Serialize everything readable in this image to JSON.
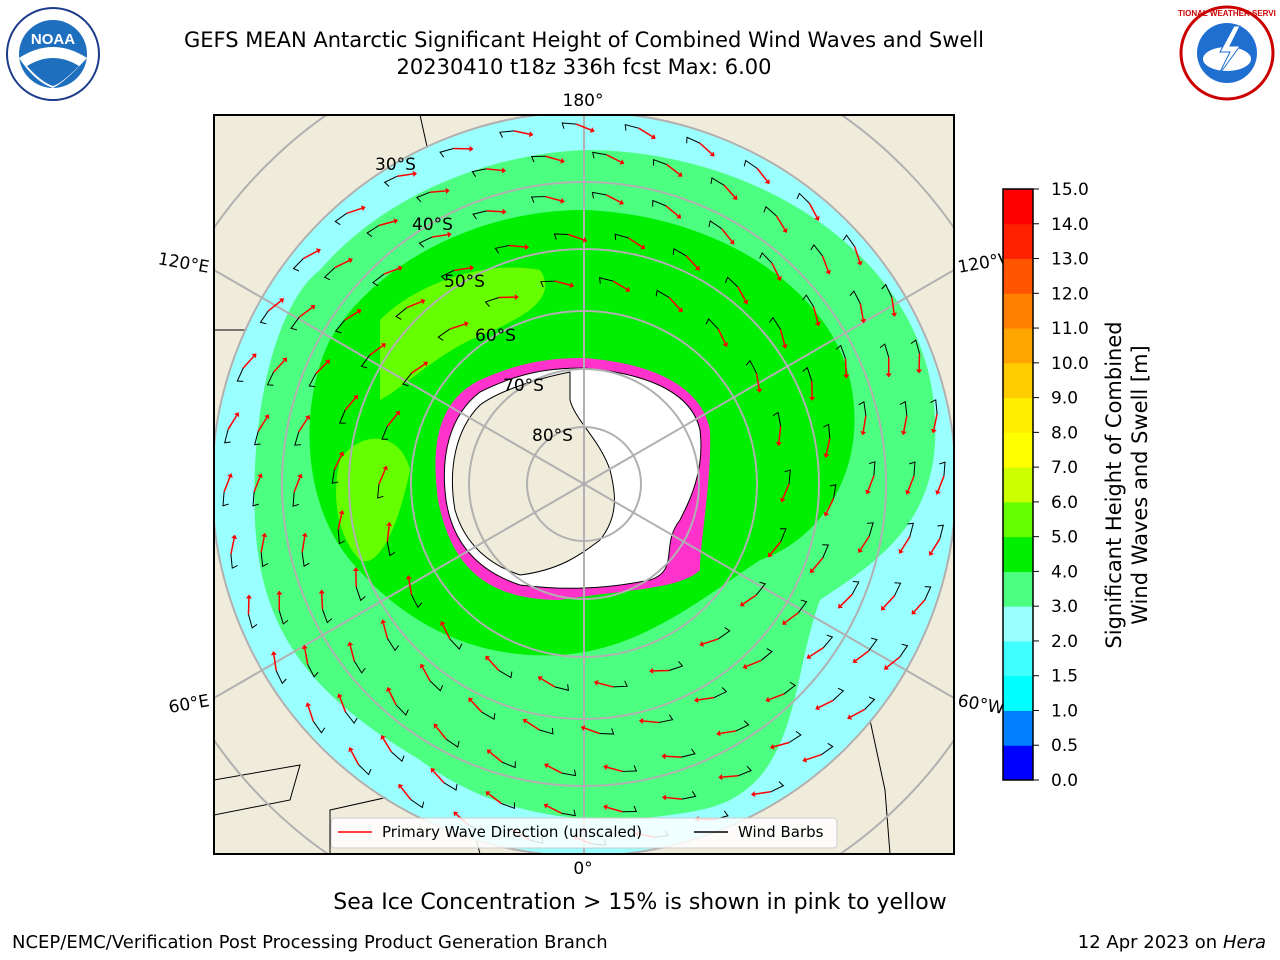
{
  "title": {
    "line1": "GEFS MEAN Antarctic Significant Height of Combined Wind Waves and Swell",
    "line2": "20230410 t18z 336h fcst   Max: 6.00"
  },
  "map": {
    "lon_labels": [
      "180°",
      "0°",
      "120°E",
      "60°E",
      "120°W",
      "60°W"
    ],
    "lat_labels": [
      "30°S",
      "40°S",
      "50°S",
      "60°S",
      "70°S",
      "80°S"
    ],
    "legend": {
      "wave_label": "Primary Wave Direction (unscaled)",
      "barb_label": "Wind Barbs",
      "wave_color": "#ff0000",
      "barb_color": "#000000"
    },
    "colors": {
      "land": "#efecdc",
      "ocean_2_3": "#99ffff",
      "ocean_3_4": "#4dff80",
      "ocean_4_5": "#00ee00",
      "ocean_5_6": "#66ff00",
      "sea_ice": "#ff33cc",
      "antarctica": "#ffffff"
    }
  },
  "colorbar": {
    "label_line1": "Significant Height of Combined",
    "label_line2": "Wind Waves and Swell [m]",
    "ticks": [
      "0.0",
      "0.5",
      "1.0",
      "1.5",
      "2.0",
      "3.0",
      "4.0",
      "5.0",
      "6.0",
      "7.0",
      "8.0",
      "9.0",
      "10.0",
      "11.0",
      "12.0",
      "13.0",
      "14.0",
      "15.0"
    ],
    "colors": [
      "#0000ff",
      "#0080ff",
      "#00ffff",
      "#40ffff",
      "#99ffff",
      "#4dff80",
      "#00ee00",
      "#66ff00",
      "#ccff00",
      "#ffff00",
      "#ffee00",
      "#ffcc00",
      "#ffa500",
      "#ff8000",
      "#ff5500",
      "#ff2000",
      "#ff0000"
    ]
  },
  "caption": "Sea Ice Concentration > 15% is shown in pink to yellow",
  "footer": {
    "left": "NCEP/EMC/Verification Post Processing Product Generation Branch",
    "date": "12 Apr 2023 on ",
    "host": "Hera"
  },
  "logos": {
    "noaa": "NOAA",
    "nws": "NATIONAL WEATHER SERVICE"
  }
}
